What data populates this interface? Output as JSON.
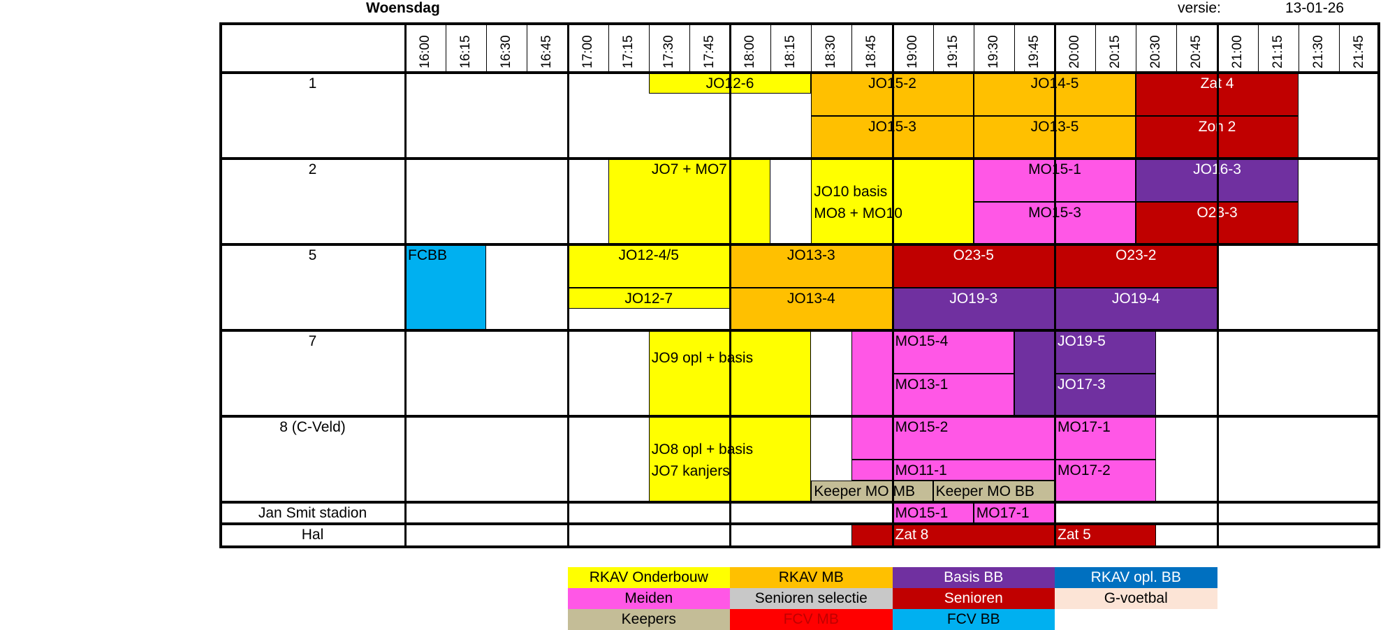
{
  "header": {
    "day": "Woensdag",
    "version_label": "versie:",
    "version_date": "13-01-26"
  },
  "colors": {
    "onderbouw": "#ffff00",
    "mb": "#ffc000",
    "basis_bb": "#7030a0",
    "opl_bb": "#0070c0",
    "meiden": "#ff57e6",
    "senioren_selectie": "#c8c8c8",
    "senioren": "#c00000",
    "gvoetbal": "#fce4d6",
    "keepers": "#c4bd97",
    "fcv_mb": "#ff0000",
    "fcv_bb": "#00b0f0"
  },
  "times": [
    "16:00",
    "16:15",
    "16:30",
    "16:45",
    "17:00",
    "17:15",
    "17:30",
    "17:45",
    "18:00",
    "18:15",
    "18:30",
    "18:45",
    "19:00",
    "19:15",
    "19:30",
    "19:45",
    "20:00",
    "20:15",
    "20:30",
    "20:45",
    "21:00",
    "21:15",
    "21:30",
    "21:45"
  ],
  "rows": [
    {
      "id": "row-1",
      "label": "1"
    },
    {
      "id": "row-2",
      "label": "2"
    },
    {
      "id": "row-5",
      "label": "5"
    },
    {
      "id": "row-7",
      "label": "7"
    },
    {
      "id": "row-8",
      "label": "8 (C-Veld)"
    },
    {
      "id": "row-stadion",
      "label": "Jan Smit stadion"
    },
    {
      "id": "row-hal",
      "label": "Hal"
    }
  ],
  "blocks": [
    {
      "name": "jo12-6",
      "row": 0,
      "start": 6,
      "end": 10,
      "sub": "top",
      "color": "onderbouw",
      "text": "JO12-6",
      "align": "center"
    },
    {
      "name": "jo15-2",
      "row": 0,
      "start": 10,
      "end": 14,
      "sub": "top",
      "color": "mb",
      "text": "JO15-2",
      "align": "center"
    },
    {
      "name": "jo14-5",
      "row": 0,
      "start": 14,
      "end": 18,
      "sub": "top",
      "color": "mb",
      "text": "JO14-5",
      "align": "center"
    },
    {
      "name": "zat-4",
      "row": 0,
      "start": 18,
      "end": 22,
      "sub": "top",
      "color": "senioren",
      "text": "Zat 4",
      "align": "center",
      "light": true
    },
    {
      "name": "jo15-3",
      "row": 0,
      "start": 10,
      "end": 14,
      "sub": "bottom",
      "color": "mb",
      "text": "JO15-3",
      "align": "center"
    },
    {
      "name": "jo13-5",
      "row": 0,
      "start": 14,
      "end": 18,
      "sub": "bottom",
      "color": "mb",
      "text": "JO13-5",
      "align": "center"
    },
    {
      "name": "zon-2",
      "row": 0,
      "start": 18,
      "end": 22,
      "sub": "bottom",
      "color": "senioren",
      "text": "Zon 2",
      "align": "center",
      "light": true
    },
    {
      "name": "jo7-mo7",
      "row": 1,
      "start": 5,
      "end": 9,
      "sub": "full",
      "color": "onderbouw",
      "text": "JO7 + MO7",
      "align": "center"
    },
    {
      "name": "jo10-basis",
      "row": 1,
      "start": 10,
      "end": 14,
      "sub": "full",
      "color": "onderbouw",
      "text": "JO10 basis",
      "text2": "MO8 + MO10",
      "align": "left"
    },
    {
      "name": "mo15-1-row2",
      "row": 1,
      "start": 14,
      "end": 18,
      "sub": "top",
      "color": "meiden",
      "text": "MO15-1",
      "align": "center"
    },
    {
      "name": "mo15-3",
      "row": 1,
      "start": 14,
      "end": 18,
      "sub": "bottom",
      "color": "meiden",
      "text": "MO15-3",
      "align": "center"
    },
    {
      "name": "jo16-3",
      "row": 1,
      "start": 18,
      "end": 22,
      "sub": "top",
      "color": "basis_bb",
      "text": "JO16-3",
      "align": "center",
      "light": true
    },
    {
      "name": "o23-3",
      "row": 1,
      "start": 18,
      "end": 22,
      "sub": "bottom",
      "color": "senioren",
      "text": "O23-3",
      "align": "center",
      "light": true
    },
    {
      "name": "fcbb",
      "row": 2,
      "start": 0,
      "end": 2,
      "sub": "full",
      "color": "fcv_bb",
      "text": "FCBB",
      "align": "left"
    },
    {
      "name": "jo12-4-5",
      "row": 2,
      "start": 4,
      "end": 8,
      "sub": "top",
      "color": "onderbouw",
      "text": "JO12-4/5",
      "align": "center"
    },
    {
      "name": "jo12-7",
      "row": 2,
      "start": 4,
      "end": 8,
      "sub": "mid",
      "color": "onderbouw",
      "text": "JO12-7",
      "align": "center"
    },
    {
      "name": "jo13-3",
      "row": 2,
      "start": 8,
      "end": 12,
      "sub": "top",
      "color": "mb",
      "text": "JO13-3",
      "align": "center"
    },
    {
      "name": "jo13-4",
      "row": 2,
      "start": 8,
      "end": 12,
      "sub": "bottom",
      "color": "mb",
      "text": "JO13-4",
      "align": "center"
    },
    {
      "name": "o23-5",
      "row": 2,
      "start": 12,
      "end": 16,
      "sub": "top",
      "color": "senioren",
      "text": "O23-5",
      "align": "center",
      "light": true
    },
    {
      "name": "o23-2",
      "row": 2,
      "start": 16,
      "end": 20,
      "sub": "top",
      "color": "senioren",
      "text": "O23-2",
      "align": "center",
      "light": true
    },
    {
      "name": "jo19-3",
      "row": 2,
      "start": 12,
      "end": 16,
      "sub": "bottom",
      "color": "basis_bb",
      "text": "JO19-3",
      "align": "center",
      "light": true
    },
    {
      "name": "jo19-4",
      "row": 2,
      "start": 16,
      "end": 20,
      "sub": "bottom",
      "color": "basis_bb",
      "text": "JO19-4",
      "align": "center",
      "light": true
    },
    {
      "name": "jo9-opl-basis",
      "row": 3,
      "start": 6,
      "end": 10,
      "sub": "full",
      "color": "onderbouw",
      "text": "JO9 opl + basis",
      "align": "left",
      "valign": "upper"
    },
    {
      "name": "meiden-row7-lead",
      "row": 3,
      "start": 11,
      "end": 12,
      "sub": "full",
      "color": "meiden",
      "text": ""
    },
    {
      "name": "mo15-4",
      "row": 3,
      "start": 12,
      "end": 15,
      "sub": "top",
      "color": "meiden",
      "text": "MO15-4",
      "align": "left"
    },
    {
      "name": "mo13-1",
      "row": 3,
      "start": 12,
      "end": 15,
      "sub": "bottom",
      "color": "meiden",
      "text": "MO13-1",
      "align": "left"
    },
    {
      "name": "basis-row7-lead",
      "row": 3,
      "start": 15,
      "end": 16,
      "sub": "full",
      "color": "basis_bb",
      "text": ""
    },
    {
      "name": "jo19-5",
      "row": 3,
      "start": 16,
      "end": 18.5,
      "sub": "top",
      "color": "basis_bb",
      "text": "JO19-5",
      "align": "left",
      "light": true
    },
    {
      "name": "jo17-3",
      "row": 3,
      "start": 16,
      "end": 18.5,
      "sub": "bottom",
      "color": "basis_bb",
      "text": "JO17-3",
      "align": "left",
      "light": true
    },
    {
      "name": "jo8-opl-basis",
      "row": 4,
      "start": 6,
      "end": 10,
      "sub": "full",
      "color": "onderbouw",
      "text": "JO8 opl + basis",
      "text2": "JO7 kanjers",
      "align": "left"
    },
    {
      "name": "meiden-row8-lead",
      "row": 4,
      "start": 11,
      "end": 12,
      "sub": "upper",
      "color": "meiden",
      "text": ""
    },
    {
      "name": "mo15-2",
      "row": 4,
      "start": 12,
      "end": 16,
      "sub": "top",
      "color": "meiden",
      "text": "MO15-2",
      "align": "left"
    },
    {
      "name": "mo11-1",
      "row": 4,
      "start": 11,
      "end": 16,
      "sub": "mid8",
      "color": "meiden",
      "text": "MO11-1",
      "align": "left",
      "textOffset": 1
    },
    {
      "name": "keeper-mo-mb",
      "row": 4,
      "start": 10,
      "end": 13,
      "sub": "keeper",
      "color": "keepers",
      "text": "Keeper MO MB",
      "align": "left"
    },
    {
      "name": "keeper-mo-bb",
      "row": 4,
      "start": 13,
      "end": 16,
      "sub": "keeper",
      "color": "keepers",
      "text": "Keeper MO BB",
      "align": "left"
    },
    {
      "name": "mo17-1-row8",
      "row": 4,
      "start": 16,
      "end": 18.5,
      "sub": "top",
      "color": "meiden",
      "text": "MO17-1",
      "align": "left"
    },
    {
      "name": "mo17-2",
      "row": 4,
      "start": 16,
      "end": 18.5,
      "sub": "bottom",
      "color": "meiden",
      "text": "MO17-2",
      "align": "left"
    },
    {
      "name": "mo15-1-stadion",
      "row": 5,
      "start": 12,
      "end": 14,
      "sub": "full",
      "color": "meiden",
      "text": "MO15-1",
      "align": "left"
    },
    {
      "name": "mo17-1-stadion",
      "row": 5,
      "start": 14,
      "end": 16,
      "sub": "full",
      "color": "meiden",
      "text": "MO17-1",
      "align": "left"
    },
    {
      "name": "hal-lead",
      "row": 6,
      "start": 11,
      "end": 12,
      "sub": "full",
      "color": "senioren",
      "text": ""
    },
    {
      "name": "zat-8",
      "row": 6,
      "start": 12,
      "end": 16,
      "sub": "full",
      "color": "senioren",
      "text": "Zat 8",
      "align": "left",
      "light": true
    },
    {
      "name": "zat-5",
      "row": 6,
      "start": 16,
      "end": 18.5,
      "sub": "full",
      "color": "senioren",
      "text": "Zat 5",
      "align": "left",
      "light": true
    }
  ],
  "legend": [
    {
      "name": "legend-rkav-onderbouw",
      "label": "RKAV Onderbouw",
      "color": "onderbouw",
      "text_color": "#000000"
    },
    {
      "name": "legend-rkav-mb",
      "label": "RKAV MB",
      "color": "mb",
      "text_color": "#000000"
    },
    {
      "name": "legend-basis-bb",
      "label": "Basis BB",
      "color": "basis_bb",
      "text_color": "#ffffff"
    },
    {
      "name": "legend-rkav-opl-bb",
      "label": "RKAV opl. BB",
      "color": "opl_bb",
      "text_color": "#ffffff"
    },
    {
      "name": "legend-meiden",
      "label": "Meiden",
      "color": "meiden",
      "text_color": "#000000"
    },
    {
      "name": "legend-senioren-selectie",
      "label": "Senioren selectie",
      "color": "senioren_selectie",
      "text_color": "#000000"
    },
    {
      "name": "legend-senioren",
      "label": "Senioren",
      "color": "senioren",
      "text_color": "#ffffff"
    },
    {
      "name": "legend-g-voetbal",
      "label": "G-voetbal",
      "color": "gvoetbal",
      "text_color": "#000000"
    },
    {
      "name": "legend-keepers",
      "label": "Keepers",
      "color": "keepers",
      "text_color": "#000000"
    },
    {
      "name": "legend-fcv-mb",
      "label": "FCV MB",
      "color": "fcv_mb",
      "text_color": "#c00000"
    },
    {
      "name": "legend-fcv-bb",
      "label": "FCV BB",
      "color": "fcv_bb",
      "text_color": "#000000"
    }
  ]
}
